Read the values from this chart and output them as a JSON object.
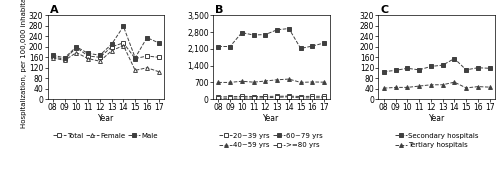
{
  "years": [
    8,
    9,
    10,
    11,
    12,
    13,
    14,
    15,
    16,
    17
  ],
  "year_labels": [
    "08",
    "09",
    "10",
    "11",
    "12",
    "13",
    "14",
    "15",
    "16",
    "17"
  ],
  "A": {
    "title": "A",
    "ylabel": "Hospitalization, per 100,000 inhabitants",
    "ylim": [
      0,
      320
    ],
    "yticks": [
      0,
      40,
      80,
      120,
      160,
      200,
      240,
      280,
      320
    ],
    "Total": [
      163,
      152,
      197,
      165,
      160,
      200,
      215,
      155,
      165,
      160
    ],
    "Female": [
      158,
      148,
      178,
      155,
      145,
      185,
      205,
      110,
      120,
      105
    ],
    "Male": [
      168,
      158,
      200,
      175,
      168,
      210,
      278,
      158,
      235,
      215
    ]
  },
  "B": {
    "title": "B",
    "ylim": [
      0,
      3500
    ],
    "yticks": [
      0,
      700,
      1400,
      2100,
      2800,
      3500
    ],
    "ytick_labels": [
      "0",
      "700",
      "1,400",
      "2,100",
      "2,800",
      "3,500"
    ],
    "age2039": [
      100,
      100,
      120,
      110,
      115,
      120,
      130,
      110,
      120,
      120
    ],
    "age4059": [
      700,
      700,
      750,
      710,
      760,
      810,
      840,
      700,
      720,
      710
    ],
    "age6079": [
      2200,
      2200,
      2780,
      2680,
      2700,
      2900,
      2950,
      2120,
      2220,
      2350
    ],
    "agege80": [
      40,
      40,
      50,
      50,
      60,
      80,
      100,
      50,
      60,
      60
    ]
  },
  "C": {
    "title": "C",
    "ylim": [
      0,
      320
    ],
    "yticks": [
      0,
      40,
      80,
      120,
      160,
      200,
      240,
      280,
      320
    ],
    "Secondary": [
      105,
      110,
      118,
      112,
      125,
      130,
      155,
      112,
      120,
      118
    ],
    "Tertiary": [
      42,
      45,
      45,
      50,
      55,
      55,
      65,
      43,
      48,
      46
    ]
  },
  "line_color": "#404040",
  "legend_fontsize": 5.0,
  "tick_fontsize": 5.5,
  "title_fontsize": 8,
  "ylabel_fontsize": 5.0
}
